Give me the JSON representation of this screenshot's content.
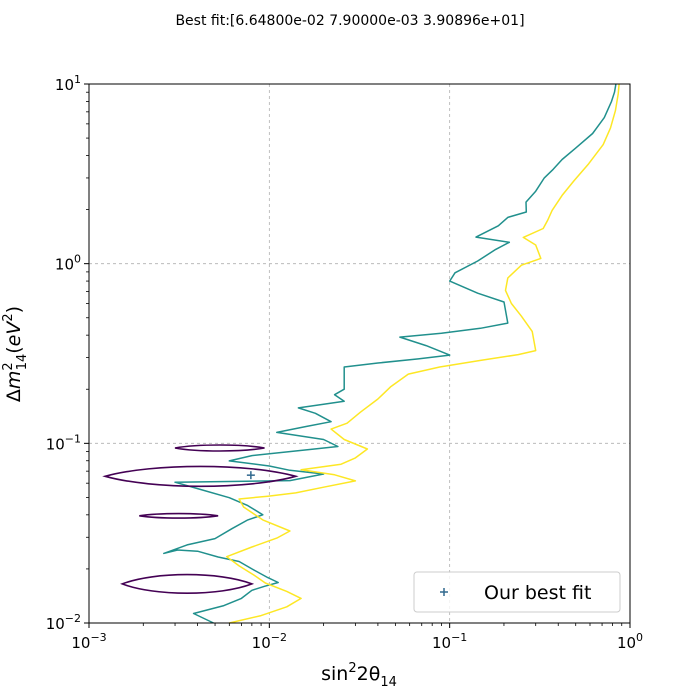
{
  "chart_data": {
    "type": "line",
    "title": "Best fit:[6.64800e-02 7.90000e-03 3.90896e+01]",
    "xlabel": "sin²2θ₁₄",
    "ylabel": "Δm²₁₄(eV²)",
    "xscale": "log",
    "yscale": "log",
    "xlim": [
      0.001,
      1
    ],
    "ylim": [
      0.01,
      10
    ],
    "grid": true,
    "legend_position": "lower-right",
    "x_ticks": [
      {
        "value": 0.001,
        "base": "10",
        "exp": "−3"
      },
      {
        "value": 0.01,
        "base": "10",
        "exp": "−2"
      },
      {
        "value": 0.1,
        "base": "10",
        "exp": "−1"
      },
      {
        "value": 1,
        "base": "10",
        "exp": "0"
      }
    ],
    "y_ticks": [
      {
        "value": 0.01,
        "base": "10",
        "exp": "−2"
      },
      {
        "value": 0.1,
        "base": "10",
        "exp": "−1"
      },
      {
        "value": 1,
        "base": "10",
        "exp": "0"
      },
      {
        "value": 10,
        "base": "10",
        "exp": "1"
      }
    ],
    "series": [
      {
        "color": "#21908d",
        "points": [
          [
            0.0049,
            0.01
          ],
          [
            0.0038,
            0.0113
          ],
          [
            0.0056,
            0.0125
          ],
          [
            0.007,
            0.0137
          ],
          [
            0.008,
            0.0152
          ],
          [
            0.0094,
            0.016
          ],
          [
            0.0112,
            0.0168
          ],
          [
            0.0098,
            0.0179
          ],
          [
            0.008,
            0.02
          ],
          [
            0.0068,
            0.022
          ],
          [
            0.0052,
            0.0233
          ],
          [
            0.004,
            0.0251
          ],
          [
            0.0031,
            0.0255
          ],
          [
            0.0026,
            0.0244
          ],
          [
            0.0035,
            0.0272
          ],
          [
            0.005,
            0.0295
          ],
          [
            0.0062,
            0.0335
          ],
          [
            0.0076,
            0.0375
          ],
          [
            0.0092,
            0.04
          ],
          [
            0.0076,
            0.045
          ],
          [
            0.006,
            0.0498
          ],
          [
            0.004,
            0.056
          ],
          [
            0.003,
            0.0608
          ],
          [
            0.013,
            0.062
          ],
          [
            0.02,
            0.0675
          ],
          [
            0.013,
            0.0708
          ],
          [
            0.01,
            0.0748
          ],
          [
            0.006,
            0.0798
          ],
          [
            0.008,
            0.0855
          ],
          [
            0.017,
            0.0925
          ],
          [
            0.024,
            0.096
          ],
          [
            0.02,
            0.105
          ],
          [
            0.011,
            0.115
          ],
          [
            0.016,
            0.124
          ],
          [
            0.022,
            0.132
          ],
          [
            0.018,
            0.147
          ],
          [
            0.0145,
            0.1575
          ],
          [
            0.02,
            0.165
          ],
          [
            0.026,
            0.1715
          ],
          [
            0.023,
            0.1865
          ],
          [
            0.026,
            0.2
          ],
          [
            0.026,
            0.266
          ],
          [
            0.04,
            0.28
          ],
          [
            0.067,
            0.295
          ],
          [
            0.1,
            0.31
          ],
          [
            0.074,
            0.35
          ],
          [
            0.053,
            0.39
          ],
          [
            0.09,
            0.41
          ],
          [
            0.148,
            0.437
          ],
          [
            0.21,
            0.467
          ],
          [
            0.2,
            0.612
          ],
          [
            0.143,
            0.685
          ],
          [
            0.1,
            0.8
          ],
          [
            0.107,
            0.89
          ],
          [
            0.143,
            1.035
          ],
          [
            0.18,
            1.2
          ],
          [
            0.214,
            1.315
          ],
          [
            0.14,
            1.405
          ],
          [
            0.186,
            1.625
          ],
          [
            0.21,
            1.81
          ],
          [
            0.266,
            1.94
          ],
          [
            0.265,
            2.2
          ],
          [
            0.3,
            2.53
          ],
          [
            0.335,
            3.0
          ],
          [
            0.375,
            3.35
          ],
          [
            0.42,
            3.8
          ],
          [
            0.5,
            4.4
          ],
          [
            0.62,
            5.3
          ],
          [
            0.72,
            6.5
          ],
          [
            0.79,
            8.0
          ],
          [
            0.82,
            9.0
          ],
          [
            0.835,
            10.0
          ]
        ]
      },
      {
        "color": "#fde725",
        "points": [
          [
            0.006,
            0.01
          ],
          [
            0.009,
            0.011
          ],
          [
            0.0125,
            0.0123
          ],
          [
            0.015,
            0.0137
          ],
          [
            0.0125,
            0.015
          ],
          [
            0.0095,
            0.0167
          ],
          [
            0.0082,
            0.0185
          ],
          [
            0.0068,
            0.0208
          ],
          [
            0.0058,
            0.0234
          ],
          [
            0.008,
            0.0265
          ],
          [
            0.011,
            0.0297
          ],
          [
            0.013,
            0.0325
          ],
          [
            0.0092,
            0.0375
          ],
          [
            0.0072,
            0.0442
          ],
          [
            0.0068,
            0.049
          ],
          [
            0.0098,
            0.0508
          ],
          [
            0.014,
            0.053
          ],
          [
            0.02,
            0.057
          ],
          [
            0.03,
            0.0618
          ],
          [
            0.023,
            0.0668
          ],
          [
            0.015,
            0.0712
          ],
          [
            0.025,
            0.0765
          ],
          [
            0.03,
            0.083
          ],
          [
            0.035,
            0.093
          ],
          [
            0.026,
            0.105
          ],
          [
            0.022,
            0.12
          ],
          [
            0.027,
            0.1295
          ],
          [
            0.032,
            0.149
          ],
          [
            0.04,
            0.1765
          ],
          [
            0.047,
            0.206
          ],
          [
            0.059,
            0.243
          ],
          [
            0.088,
            0.266
          ],
          [
            0.15,
            0.29
          ],
          [
            0.24,
            0.312
          ],
          [
            0.3,
            0.328
          ],
          [
            0.287,
            0.42
          ],
          [
            0.25,
            0.51
          ],
          [
            0.22,
            0.6
          ],
          [
            0.204,
            0.71
          ],
          [
            0.21,
            0.832
          ],
          [
            0.25,
            0.98
          ],
          [
            0.32,
            1.07
          ],
          [
            0.3,
            1.27
          ],
          [
            0.256,
            1.4
          ],
          [
            0.33,
            1.57
          ],
          [
            0.35,
            1.75
          ],
          [
            0.37,
            1.98
          ],
          [
            0.42,
            2.4
          ],
          [
            0.49,
            2.9
          ],
          [
            0.59,
            3.6
          ],
          [
            0.71,
            4.6
          ],
          [
            0.78,
            5.7
          ],
          [
            0.83,
            7.1
          ],
          [
            0.86,
            8.8
          ],
          [
            0.87,
            10.0
          ]
        ]
      }
    ],
    "contours": [
      {
        "color": "#440154",
        "center_x": 0.003,
        "center_y": 0.0165,
        "x_min": 0.00153,
        "x_max": 0.008,
        "height_factor": 1.13
      },
      {
        "color": "#440154",
        "center_x": 0.003,
        "center_y": 0.0395,
        "x_min": 0.0019,
        "x_max": 0.0052,
        "height_factor": 1.03
      },
      {
        "color": "#440154",
        "center_x": 0.0042,
        "center_y": 0.0655,
        "x_min": 0.00123,
        "x_max": 0.014,
        "height_factor": 1.14
      },
      {
        "color": "#440154",
        "center_x": 0.0046,
        "center_y": 0.0942,
        "x_min": 0.003,
        "x_max": 0.0094,
        "height_factor": 1.04
      }
    ],
    "best_fit_point": {
      "x": 0.0079,
      "y": 0.0665,
      "color": "#31688e",
      "marker": "+"
    },
    "legend": [
      {
        "label": "Our best fit",
        "marker": "+",
        "color": "#31688e"
      }
    ]
  }
}
